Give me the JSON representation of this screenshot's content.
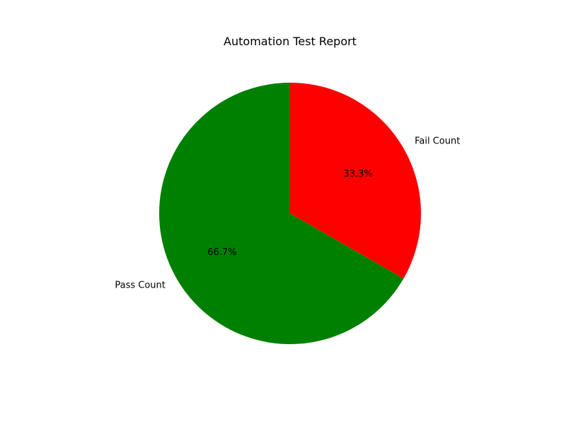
{
  "chart_data": {
    "type": "pie",
    "title": "Automation Test Report",
    "slices": [
      {
        "label": "Pass Count",
        "value": 66.7,
        "pct_label": "66.7%",
        "color": "#008000"
      },
      {
        "label": "Fail Count",
        "value": 33.3,
        "pct_label": "33.3%",
        "color": "#ff0000"
      }
    ],
    "start_angle_deg": 90,
    "direction": "counterclockwise",
    "legend": "none"
  }
}
